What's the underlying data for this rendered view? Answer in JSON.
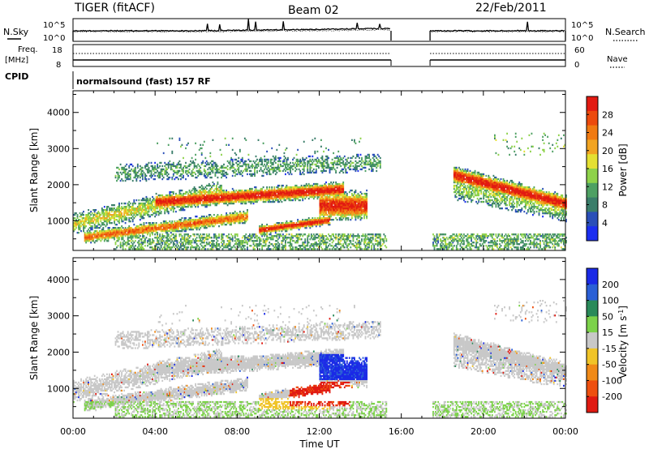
{
  "header": {
    "radar": "TIGER (fitACF)",
    "beam": "Beam 02",
    "date": "22/Feb/2011"
  },
  "noise_panel": {
    "left_label": "N.Sky",
    "right_label": "N.Search",
    "tick_top": "10^5",
    "tick_bottom": "10^0"
  },
  "freq_panel": {
    "left_label_1": "Freq.",
    "left_label_2": "[MHz]",
    "left_ticks": [
      "18",
      "8"
    ],
    "right_label": "Nave",
    "right_ticks": [
      "60",
      "0"
    ]
  },
  "cpid": {
    "label": "CPID",
    "program": "normalsound (fast) 157 RF"
  },
  "x_axis": {
    "label": "Time UT",
    "ticks": [
      "00:00",
      "04:00",
      "08:00",
      "12:00",
      "16:00",
      "20:00",
      "00:00"
    ]
  },
  "chart_data": [
    {
      "type": "heatmap",
      "panel": "power",
      "ylabel": "Slant Range [km]",
      "yticks": [
        "1000",
        "2000",
        "3000",
        "4000"
      ],
      "ylim": [
        180,
        4600
      ],
      "xlim_hours": [
        0,
        24
      ],
      "colorbar_label": "Power [dB]",
      "colorbar_ticks": [
        "4",
        "8",
        "12",
        "16",
        "20",
        "24",
        "28"
      ],
      "colorbar_colors": [
        "#1b2ef0",
        "#2a4fb8",
        "#3a7d6a",
        "#4ea063",
        "#8ed24a",
        "#e4e032",
        "#f1a422",
        "#f07a12",
        "#ec4a0d",
        "#e21a12"
      ],
      "data_gap_hours": [
        15.5,
        17.4
      ]
    },
    {
      "type": "heatmap",
      "panel": "velocity",
      "ylabel": "Slant Range [km]",
      "yticks": [
        "1000",
        "2000",
        "3000",
        "4000"
      ],
      "ylim": [
        180,
        4600
      ],
      "xlim_hours": [
        0,
        24
      ],
      "colorbar_label": "Velocity [m s-1]",
      "colorbar_ticks": [
        "200",
        "100",
        "50",
        "15",
        "-15",
        "-50",
        "-100",
        "-200"
      ],
      "colorbar_colors": [
        "#1a2ae6",
        "#2a5fd6",
        "#2a8a5a",
        "#7cd24a",
        "#c8c8c8",
        "#f0c428",
        "#f08a18",
        "#ee5010",
        "#e01a12"
      ],
      "data_gap_hours": [
        15.5,
        17.4
      ]
    }
  ]
}
